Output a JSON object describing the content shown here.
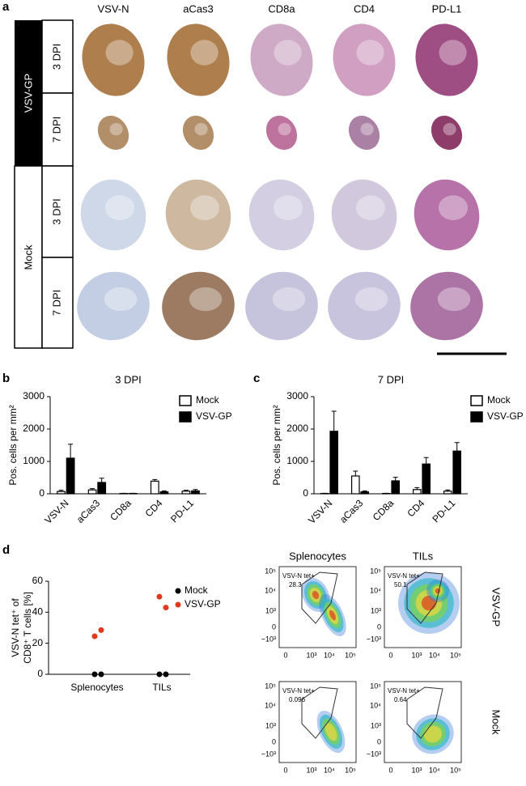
{
  "figure": {
    "panel_labels": [
      "a",
      "b",
      "c",
      "d"
    ],
    "histology": {
      "columns": [
        "VSV-N",
        "aCas3",
        "CD8a",
        "CD4",
        "PD-L1"
      ],
      "groups": [
        "VSV-GP",
        "Mock"
      ],
      "timepoints": [
        "3 DPI",
        "7 DPI",
        "3 DPI",
        "7 DPI"
      ]
    },
    "flow": {
      "columns": [
        "Splenocytes",
        "TILs"
      ],
      "rows": [
        "VSV-GP",
        "Mock"
      ],
      "gate_label": "VSV-N tet+",
      "gate_values": [
        [
          28.3,
          50.1
        ],
        [
          0.096,
          0.64
        ]
      ],
      "yticks": [
        "10⁵",
        "10⁴",
        "10³",
        "0",
        "−10³"
      ],
      "xticks": [
        "0",
        "10³",
        "10⁴",
        "10⁵"
      ]
    }
  },
  "chart_data": [
    {
      "type": "bar",
      "title": "3 DPI",
      "ylabel": "Pos. cells per mm²",
      "categories": [
        "VSV-N",
        "aCas3",
        "CD8a",
        "CD4",
        "PD-L1"
      ],
      "series": [
        {
          "name": "Mock",
          "color": "#ffffff",
          "values": [
            70,
            120,
            10,
            390,
            80
          ],
          "errors": [
            40,
            40,
            5,
            50,
            30
          ]
        },
        {
          "name": "VSV-GP",
          "color": "#000000",
          "values": [
            1100,
            350,
            10,
            60,
            90
          ],
          "errors": [
            430,
            130,
            5,
            30,
            40
          ]
        }
      ],
      "ylim": [
        0,
        3000
      ],
      "yticks": [
        0,
        1000,
        2000,
        3000
      ]
    },
    {
      "type": "bar",
      "title": "7 DPI",
      "ylabel": "Pos. cells per mm²",
      "categories": [
        "VSV-N",
        "aCas3",
        "CD8a",
        "CD4",
        "PD-L1"
      ],
      "series": [
        {
          "name": "Mock",
          "color": "#ffffff",
          "values": [
            10,
            550,
            10,
            130,
            80
          ],
          "errors": [
            5,
            150,
            5,
            60,
            40
          ]
        },
        {
          "name": "VSV-GP",
          "color": "#000000",
          "values": [
            1930,
            60,
            400,
            920,
            1320
          ],
          "errors": [
            620,
            30,
            110,
            200,
            260
          ]
        }
      ],
      "ylim": [
        0,
        3000
      ],
      "yticks": [
        0,
        1000,
        2000,
        3000
      ]
    },
    {
      "type": "strip",
      "ylabel": [
        "VSV-N tet⁺ of",
        "CD8⁺ T cells [%]"
      ],
      "categories": [
        "Splenocytes",
        "TILs"
      ],
      "series": [
        {
          "name": "Mock",
          "color": "#000000",
          "values": [
            [
              0,
              0
            ],
            [
              0,
              0
            ]
          ]
        },
        {
          "name": "VSV-GP",
          "color": "#e03a1e",
          "values": [
            [
              24.5,
              28.5
            ],
            [
              50,
              43
            ]
          ]
        }
      ],
      "ylim": [
        0,
        60
      ],
      "yticks": [
        0,
        20,
        40,
        60
      ]
    }
  ]
}
